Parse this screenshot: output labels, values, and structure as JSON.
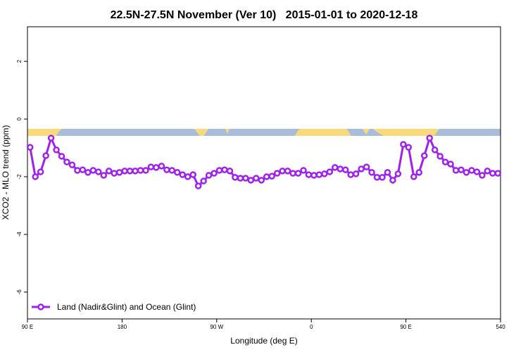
{
  "chart_data": {
    "type": "line",
    "title": "22.5N-27.5N November (Ver 10)   2015-01-01 to 2020-12-18",
    "x_label": "Longitude (deg E)",
    "y_label": "XCO2 - MLO trend (ppm)",
    "x": [
      92.5,
      97.5,
      102.5,
      107.5,
      112.5,
      117.5,
      122.5,
      127.5,
      132.5,
      137.5,
      142.5,
      147.5,
      152.5,
      157.5,
      162.5,
      167.5,
      172.5,
      177.5,
      182.5,
      187.5,
      192.5,
      197.5,
      202.5,
      207.5,
      212.5,
      217.5,
      222.5,
      227.5,
      232.5,
      237.5,
      242.5,
      247.5,
      252.5,
      257.5,
      262.5,
      267.5,
      272.5,
      277.5,
      282.5,
      287.5,
      292.5,
      297.5,
      302.5,
      307.5,
      312.5,
      317.5,
      322.5,
      327.5,
      332.5,
      337.5,
      342.5,
      347.5,
      352.5,
      357.5,
      362.5,
      367.5,
      372.5,
      377.5,
      382.5,
      387.5,
      392.5,
      397.5,
      402.5,
      407.5,
      412.5,
      417.5,
      422.5,
      427.5,
      432.5,
      437.5,
      442.5,
      447.5,
      452.5,
      457.5,
      462.5,
      467.5,
      472.5,
      477.5,
      482.5,
      487.5,
      492.5,
      497.5,
      502.5,
      507.5,
      512.5,
      517.5,
      522.5,
      527.5,
      532.5,
      537.5
    ],
    "series": [
      {
        "name": "Land (Nadir&Glint) and Ocean (Glint)",
        "color": "#a020f0",
        "values": [
          -0.98,
          -2.0,
          -1.83,
          -1.27,
          -0.66,
          -1.07,
          -1.29,
          -1.49,
          -1.59,
          -1.78,
          -1.76,
          -1.85,
          -1.78,
          -1.83,
          -1.95,
          -1.8,
          -1.88,
          -1.85,
          -1.8,
          -1.8,
          -1.8,
          -1.78,
          -1.78,
          -1.66,
          -1.68,
          -1.63,
          -1.76,
          -1.78,
          -1.85,
          -1.93,
          -2.0,
          -1.93,
          -2.32,
          -2.15,
          -1.95,
          -1.88,
          -1.78,
          -1.76,
          -1.8,
          -2.02,
          -2.05,
          -2.05,
          -2.12,
          -2.05,
          -2.12,
          -2.0,
          -1.98,
          -1.88,
          -1.8,
          -1.8,
          -1.88,
          -1.88,
          -1.78,
          -1.93,
          -1.95,
          -1.93,
          -1.9,
          -1.83,
          -1.68,
          -1.73,
          -1.76,
          -1.93,
          -1.9,
          -1.73,
          -1.66,
          -1.85,
          -2.02,
          -2.02,
          -1.85,
          -2.12,
          -1.9,
          -0.88,
          -0.98,
          -2.0,
          -1.85,
          -1.27,
          -0.66,
          -1.07,
          -1.29,
          -1.49,
          -1.56,
          -1.78,
          -1.76,
          -1.85,
          -1.78,
          -1.83,
          -1.95,
          -1.8,
          -1.88,
          -1.88
        ]
      }
    ],
    "xlim": [
      90,
      540
    ],
    "xticks": [
      {
        "value": 90,
        "label": "90 E"
      },
      180,
      {
        "value": 270,
        "label": "90 W"
      },
      {
        "value": 360,
        "label": "0"
      },
      {
        "value": 450,
        "label": "90 E"
      },
      540
    ],
    "ylim": [
      -6.93,
      3.2
    ],
    "yticks": [
      2,
      0,
      -2,
      -4,
      -6
    ],
    "legend": "bottom-left"
  }
}
